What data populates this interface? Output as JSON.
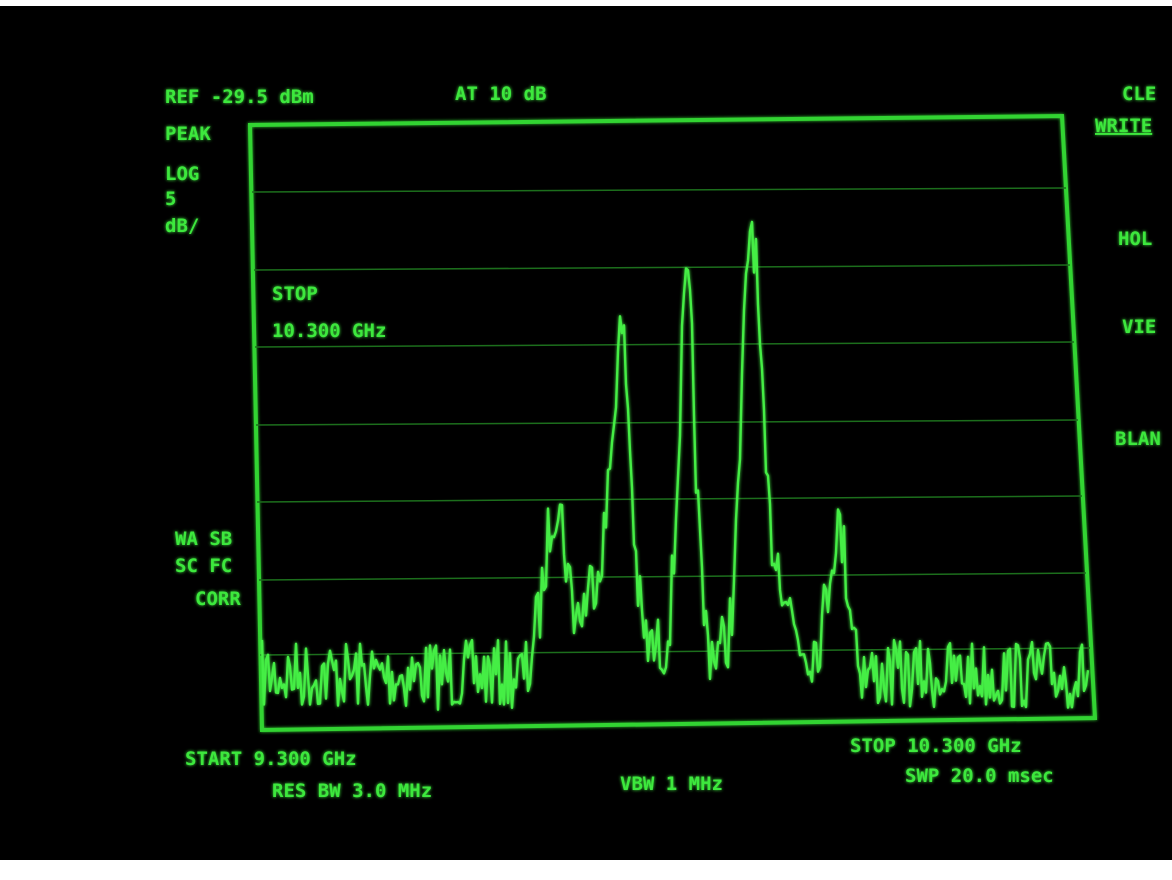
{
  "header": {
    "reference": "REF -29.5 dBm",
    "attenuation": "AT 10 dB"
  },
  "left_panel": {
    "detector": "PEAK",
    "scale": [
      "LOG",
      "5",
      "dB/"
    ],
    "flags": [
      "WA SB",
      "SC FC",
      "CORR"
    ]
  },
  "active_function": {
    "label": "STOP",
    "value": "10.300 GHz"
  },
  "footer": {
    "start": "START 9.300 GHz",
    "stop": "STOP 10.300 GHz",
    "res_bw": "RES BW 3.0 MHz",
    "vbw": "VBW 1 MHz",
    "sweep": "SWP 20.0 msec"
  },
  "softkeys": [
    "CLE",
    "WRITE",
    "HOL",
    "VIE",
    "BLAN"
  ]
}
